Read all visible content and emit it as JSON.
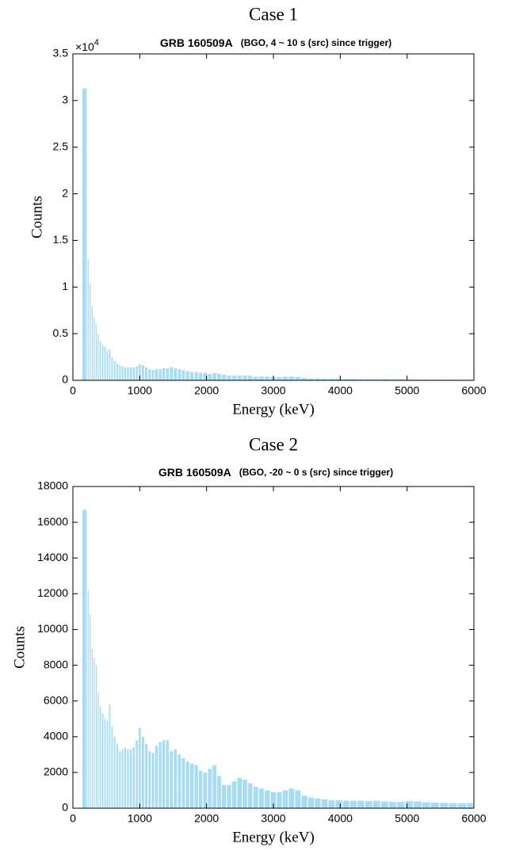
{
  "chart_data": [
    {
      "type": "histogram",
      "heading": "Case 1",
      "title": "GRB 160509A",
      "subtitle": "(BGO, 4 ~ 10 s (src) since trigger)",
      "xlabel": "Energy (keV)",
      "ylabel": "Counts",
      "y_multiplier": "×10",
      "y_multiplier_exp": "4",
      "color": "#a6dcf5",
      "bins": [
        140,
        220,
        250,
        280,
        310,
        340,
        370,
        400,
        435,
        470,
        505,
        540,
        575,
        610,
        650,
        690,
        730,
        770,
        810,
        850,
        895,
        940,
        985,
        1030,
        1080,
        1130,
        1180,
        1230,
        1285,
        1340,
        1395,
        1450,
        1510,
        1570,
        1630,
        1690,
        1755,
        1820,
        1885,
        1950,
        2020,
        2090,
        2160,
        2230,
        2305,
        2380,
        2460,
        2540,
        2620,
        2700,
        2785,
        2870,
        2960,
        3050,
        3140,
        3230,
        3325,
        3420,
        3520,
        3620,
        3720,
        3825,
        3930,
        4040,
        4150,
        4260,
        4375,
        4490,
        4610,
        4730,
        4850,
        4975,
        5100,
        5230,
        5360,
        5490,
        5625,
        5760,
        5900,
        6000
      ],
      "values": [
        31300,
        13000,
        10400,
        8000,
        6700,
        6000,
        5000,
        4200,
        3800,
        3600,
        3200,
        3300,
        2500,
        2100,
        1800,
        1600,
        1500,
        1400,
        1400,
        1400,
        1400,
        1500,
        1700,
        1600,
        1400,
        1200,
        1100,
        1200,
        1200,
        1300,
        1300,
        1400,
        1300,
        1200,
        1100,
        1000,
        900,
        900,
        800,
        800,
        700,
        800,
        700,
        600,
        500,
        500,
        500,
        500,
        500,
        400,
        400,
        400,
        350,
        350,
        400,
        400,
        350,
        250,
        200,
        200,
        180,
        170,
        160,
        150,
        150,
        140,
        130,
        130,
        120,
        110,
        110,
        100,
        100,
        90,
        90,
        80,
        80,
        70,
        70
      ],
      "xlim": [
        0,
        6000
      ],
      "xticks": [
        0,
        1000,
        2000,
        3000,
        4000,
        5000,
        6000
      ],
      "ylim": [
        0,
        35000
      ],
      "yticks": [
        0,
        {
          "value": 5000,
          "label": "0.5"
        },
        {
          "value": 10000,
          "label": "1"
        },
        {
          "value": 15000,
          "label": "1.5"
        },
        {
          "value": 20000,
          "label": "2"
        },
        {
          "value": 25000,
          "label": "2.5"
        },
        {
          "value": 30000,
          "label": "3"
        },
        {
          "value": 35000,
          "label": "3.5"
        }
      ]
    },
    {
      "type": "histogram",
      "heading": "Case 2",
      "title": "GRB 160509A",
      "subtitle": "(BGO, -20 ~ 0 s (src) since trigger)",
      "xlabel": "Energy (keV)",
      "ylabel": "Counts",
      "color": "#a6dcf5",
      "bins": [
        140,
        220,
        250,
        280,
        310,
        340,
        370,
        400,
        435,
        470,
        505,
        540,
        575,
        610,
        650,
        690,
        730,
        770,
        810,
        850,
        895,
        940,
        985,
        1030,
        1080,
        1130,
        1180,
        1230,
        1285,
        1340,
        1395,
        1450,
        1510,
        1570,
        1630,
        1690,
        1755,
        1820,
        1885,
        1950,
        2020,
        2090,
        2160,
        2230,
        2305,
        2380,
        2460,
        2540,
        2620,
        2700,
        2785,
        2870,
        2960,
        3050,
        3140,
        3230,
        3325,
        3420,
        3520,
        3620,
        3720,
        3825,
        3930,
        4040,
        4150,
        4260,
        4375,
        4490,
        4610,
        4730,
        4850,
        4975,
        5100,
        5230,
        5360,
        5490,
        5625,
        5760,
        5900,
        6000
      ],
      "values": [
        16700,
        12200,
        10800,
        8900,
        8400,
        8000,
        6500,
        5700,
        5300,
        5000,
        4900,
        5800,
        4600,
        4000,
        3600,
        3200,
        3300,
        3400,
        3300,
        3300,
        3400,
        3800,
        4500,
        4000,
        3600,
        3200,
        3100,
        3500,
        3700,
        3800,
        3800,
        3200,
        3300,
        3000,
        2800,
        2600,
        2500,
        2400,
        2100,
        2000,
        2200,
        2400,
        1800,
        1300,
        1300,
        1500,
        1700,
        1600,
        1400,
        1200,
        1100,
        1000,
        900,
        900,
        1000,
        1100,
        1000,
        700,
        600,
        550,
        500,
        450,
        450,
        420,
        420,
        420,
        400,
        420,
        380,
        360,
        350,
        400,
        380,
        330,
        310,
        300,
        290,
        280,
        300
      ],
      "xlim": [
        0,
        6000
      ],
      "xticks": [
        0,
        1000,
        2000,
        3000,
        4000,
        5000,
        6000
      ],
      "ylim": [
        0,
        18000
      ],
      "yticks": [
        0,
        2000,
        4000,
        6000,
        8000,
        10000,
        12000,
        14000,
        16000,
        18000
      ]
    }
  ]
}
